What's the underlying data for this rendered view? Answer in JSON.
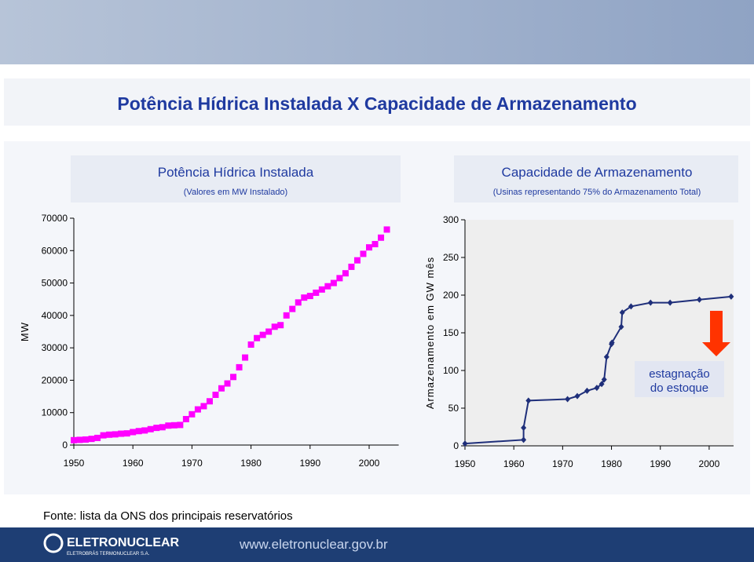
{
  "slide": {
    "title": "Potência Hídrica Instalada  X  Capacidade de Armazenamento",
    "source": "Fonte: lista da ONS dos principais reservatórios",
    "brand": "ELETRONUCLEAR",
    "brand_sub": "ELETROBRÁS TERMONUCLEAR S.A.",
    "url": "www.eletronuclear.gov.br"
  },
  "chart_data": [
    {
      "type": "scatter",
      "title": "Potência Hídrica Instalada",
      "subtitle": "(Valores em MW Instalado)",
      "y_label": "MW",
      "marker": "square",
      "xlim": [
        1950,
        2005
      ],
      "xticks": [
        1950,
        1960,
        1970,
        1980,
        1990,
        2000
      ],
      "ylim": [
        0,
        70000
      ],
      "yticks": [
        0,
        10000,
        20000,
        30000,
        40000,
        50000,
        60000,
        70000
      ],
      "series": [
        {
          "color": "#ff00ff",
          "x": [
            1950,
            1951,
            1952,
            1953,
            1954,
            1955,
            1956,
            1957,
            1958,
            1959,
            1960,
            1961,
            1962,
            1963,
            1964,
            1965,
            1966,
            1967,
            1968,
            1969,
            1970,
            1971,
            1972,
            1973,
            1974,
            1975,
            1976,
            1977,
            1978,
            1979,
            1980,
            1981,
            1982,
            1983,
            1984,
            1985,
            1986,
            1987,
            1988,
            1989,
            1990,
            1991,
            1992,
            1993,
            1994,
            1995,
            1996,
            1997,
            1998,
            1999,
            2000,
            2001,
            2002,
            2003
          ],
          "values": [
            1500,
            1600,
            1700,
            1900,
            2200,
            3000,
            3200,
            3300,
            3500,
            3600,
            4000,
            4300,
            4500,
            4900,
            5300,
            5500,
            6000,
            6100,
            6200,
            8000,
            9500,
            11000,
            12000,
            13500,
            15500,
            17500,
            19000,
            21000,
            24000,
            27000,
            31000,
            33000,
            34000,
            35000,
            36500,
            37000,
            40000,
            42000,
            44000,
            45500,
            46000,
            47000,
            48000,
            49000,
            50000,
            51500,
            53000,
            55000,
            57000,
            59000,
            61000,
            62000,
            64000,
            66500
          ]
        }
      ]
    },
    {
      "type": "line",
      "title": "Capacidade de Armazenamento",
      "subtitle": "(Usinas representando 75%  do Armazenamento Total)",
      "y_label": "Armazenamento em GW mês",
      "marker": "diamond",
      "plot_background": "#eeeeee",
      "annotation": [
        "estagnação",
        "do estoque"
      ],
      "annotation_arrow_color": "#ff3300",
      "xlim": [
        1950,
        2005
      ],
      "xticks": [
        1950,
        1960,
        1970,
        1980,
        1990,
        2000
      ],
      "ylim": [
        0,
        300
      ],
      "yticks": [
        0,
        50,
        100,
        150,
        200,
        250,
        300
      ],
      "series": [
        {
          "color": "#1f2f7a",
          "x": [
            1950,
            1962,
            1962,
            1963,
            1971,
            1973,
            1975,
            1977,
            1978,
            1978.5,
            1979,
            1980,
            1980.1,
            1982,
            1982.2,
            1984,
            1988,
            1992,
            1998,
            2004.5
          ],
          "values": [
            3,
            8,
            24,
            60,
            62,
            66,
            73,
            77,
            82,
            88,
            118,
            135,
            137,
            158,
            177,
            185,
            190,
            190,
            194,
            198
          ]
        }
      ]
    }
  ]
}
